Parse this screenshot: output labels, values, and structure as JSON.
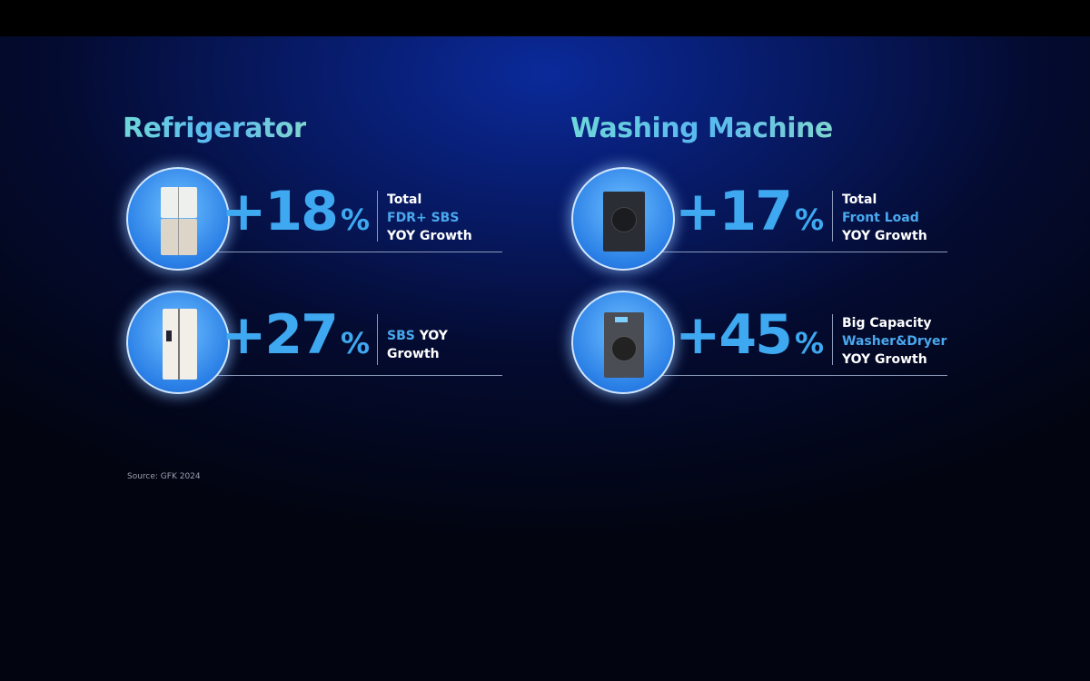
{
  "sections": [
    {
      "title": "Refrigerator",
      "items": [
        {
          "value": "+18",
          "unit": "%",
          "image": "french-door-refrigerator",
          "lines": [
            [
              {
                "t": "Total",
                "c": "white"
              }
            ],
            [
              {
                "t": "FDR+ SBS",
                "c": "blue"
              }
            ],
            [
              {
                "t": "YOY Growth",
                "c": "white"
              }
            ]
          ]
        },
        {
          "value": "+27",
          "unit": "%",
          "image": "side-by-side-refrigerator",
          "lines": [
            [
              {
                "t": "SBS",
                "c": "blue"
              },
              {
                "t": " YOY",
                "c": "white"
              }
            ],
            [
              {
                "t": "Growth",
                "c": "white"
              }
            ]
          ]
        }
      ]
    },
    {
      "title": "Washing Machine",
      "items": [
        {
          "value": "+17",
          "unit": "%",
          "image": "front-load-washer",
          "lines": [
            [
              {
                "t": "Total",
                "c": "white"
              }
            ],
            [
              {
                "t": "Front Load",
                "c": "blue"
              }
            ],
            [
              {
                "t": "YOY Growth",
                "c": "white"
              }
            ]
          ]
        },
        {
          "value": "+45",
          "unit": "%",
          "image": "washer-dryer",
          "lines": [
            [
              {
                "t": "Big Capacity",
                "c": "white"
              }
            ],
            [
              {
                "t": "Washer&Dryer",
                "c": "blue"
              }
            ],
            [
              {
                "t": "YOY Growth",
                "c": "white"
              }
            ]
          ]
        }
      ]
    }
  ],
  "source": "Source: GFK 2024",
  "colors": {
    "accent": "#3ea8f0",
    "background": "#071a66"
  }
}
